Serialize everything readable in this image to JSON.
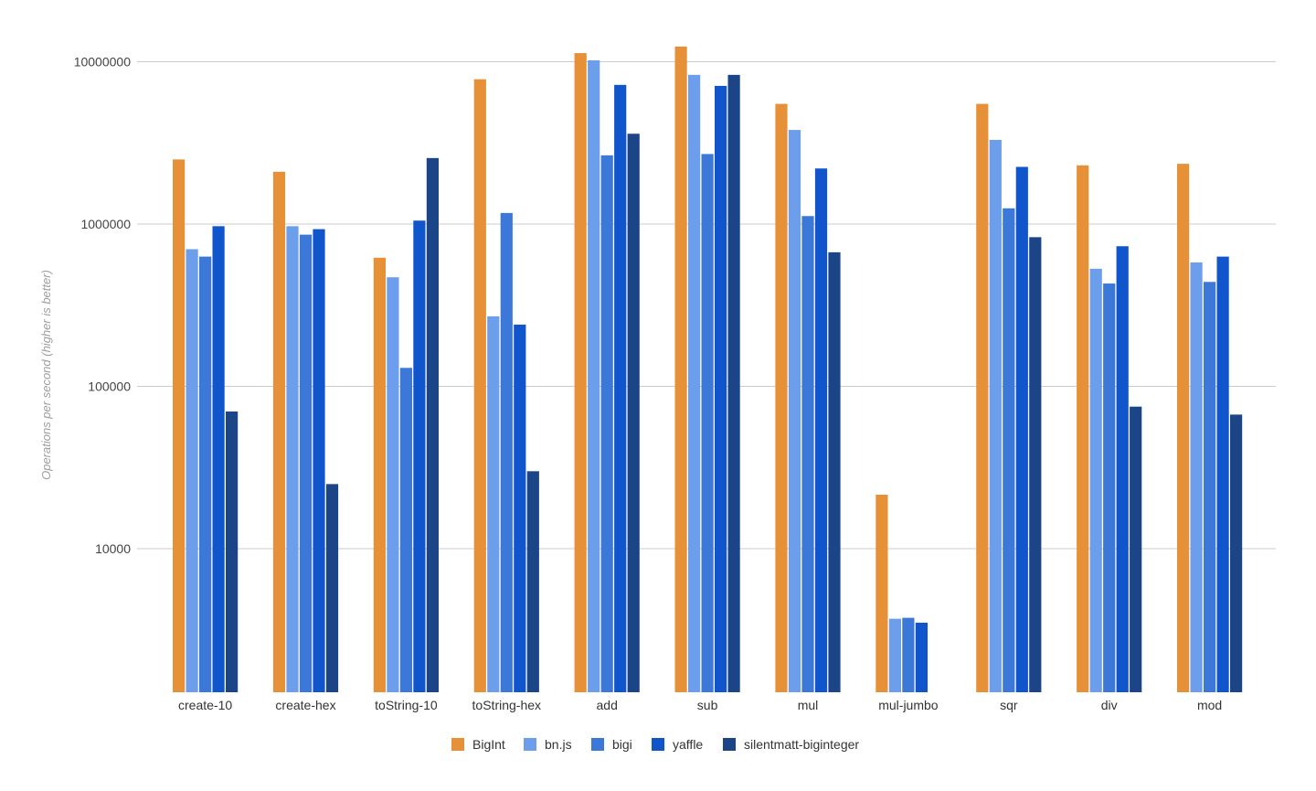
{
  "chart_data": {
    "type": "bar",
    "title": "",
    "xlabel": "",
    "ylabel": "Operations per second (higher is better)",
    "yscale": "log",
    "ylim": [
      1300,
      13000000
    ],
    "yticks": [
      10000,
      100000,
      1000000,
      10000000
    ],
    "ytick_labels": [
      "10000",
      "100000",
      "1000000",
      "10000000"
    ],
    "grid": true,
    "legend_position": "bottom",
    "categories": [
      "create-10",
      "create-hex",
      "toString-10",
      "toString-hex",
      "add",
      "sub",
      "mul",
      "mul-jumbo",
      "sqr",
      "div",
      "mod"
    ],
    "series": [
      {
        "name": "BigInt",
        "color": "#e69138",
        "values": [
          2500000,
          2100000,
          620000,
          7800000,
          11300000,
          12400000,
          5500000,
          21500,
          5500000,
          2300000,
          2350000
        ]
      },
      {
        "name": "bn.js",
        "color": "#6d9eeb",
        "values": [
          700000,
          970000,
          470000,
          270000,
          10200000,
          8300000,
          3800000,
          3700,
          3300000,
          530000,
          580000
        ]
      },
      {
        "name": "bigi",
        "color": "#3c78d8",
        "values": [
          630000,
          860000,
          130000,
          1170000,
          2650000,
          2700000,
          1120000,
          3750,
          1250000,
          430000,
          440000
        ]
      },
      {
        "name": "yaffle",
        "color": "#1155cc",
        "values": [
          970000,
          930000,
          1050000,
          240000,
          7200000,
          7100000,
          2200000,
          3500,
          2250000,
          730000,
          630000
        ]
      },
      {
        "name": "silentmatt-biginteger",
        "color": "#1c4587",
        "values": [
          70000,
          25000,
          2550000,
          30000,
          3600000,
          8300000,
          670000,
          null,
          830000,
          75000,
          67000
        ]
      }
    ]
  }
}
